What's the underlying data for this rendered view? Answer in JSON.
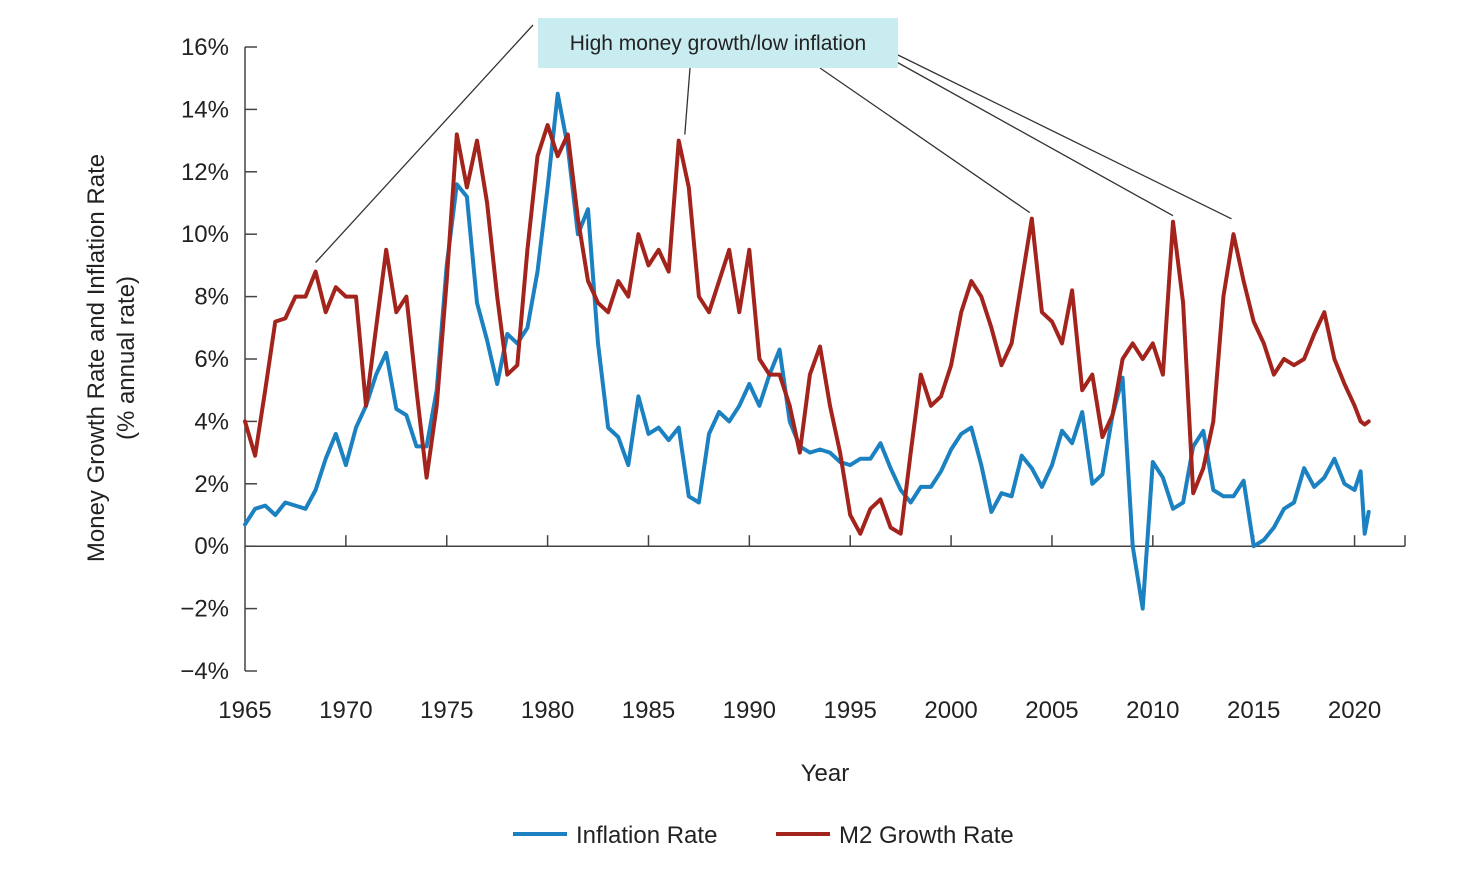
{
  "chart_data": {
    "type": "line",
    "title": "",
    "xlabel": "Year",
    "ylabel_lines": [
      "Money Growth Rate and Inflation Rate",
      "(% annual rate)"
    ],
    "xlim": [
      1965,
      2022.5
    ],
    "ylim": [
      -4,
      16
    ],
    "x_ticks": [
      1965,
      1970,
      1975,
      1980,
      1985,
      1990,
      1995,
      2000,
      2005,
      2010,
      2015,
      2020
    ],
    "x_tick_labels": [
      "1965",
      "1970",
      "1975",
      "1980",
      "1985",
      "1990",
      "1995",
      "2000",
      "2005",
      "2010",
      "2015",
      "2020"
    ],
    "y_ticks": [
      -4,
      -2,
      0,
      2,
      4,
      6,
      8,
      10,
      12,
      14,
      16
    ],
    "y_tick_labels": [
      "−4%",
      "−2%",
      "0%",
      "2%",
      "4%",
      "6%",
      "8%",
      "10%",
      "12%",
      "14%",
      "16%"
    ],
    "grid": false,
    "legend_position": "bottom-center",
    "annotation": {
      "text": "High money growth/low inflation",
      "background": "#c9ecf0",
      "points_to": [
        [
          1968.5,
          8.9
        ],
        [
          1986.8,
          13.0
        ],
        [
          2003.9,
          10.5
        ],
        [
          2011.0,
          10.4
        ],
        [
          2013.9,
          10.3
        ]
      ]
    },
    "series": [
      {
        "name": "Inflation Rate",
        "color": "#1b81c0",
        "x": [
          1965.0,
          1965.5,
          1966.0,
          1966.5,
          1967.0,
          1967.5,
          1968.0,
          1968.5,
          1969.0,
          1969.5,
          1970.0,
          1970.5,
          1971.0,
          1971.5,
          1972.0,
          1972.5,
          1973.0,
          1973.5,
          1974.0,
          1974.5,
          1975.0,
          1975.5,
          1976.0,
          1976.5,
          1977.0,
          1977.5,
          1978.0,
          1978.5,
          1979.0,
          1979.5,
          1980.0,
          1980.5,
          1981.0,
          1981.5,
          1982.0,
          1982.5,
          1983.0,
          1983.5,
          1984.0,
          1984.5,
          1985.0,
          1985.5,
          1986.0,
          1986.5,
          1987.0,
          1987.5,
          1988.0,
          1988.5,
          1989.0,
          1989.5,
          1990.0,
          1990.5,
          1991.0,
          1991.5,
          1992.0,
          1992.5,
          1993.0,
          1993.5,
          1994.0,
          1994.5,
          1995.0,
          1995.5,
          1996.0,
          1996.5,
          1997.0,
          1997.5,
          1998.0,
          1998.5,
          1999.0,
          1999.5,
          2000.0,
          2000.5,
          2001.0,
          2001.5,
          2002.0,
          2002.5,
          2003.0,
          2003.5,
          2004.0,
          2004.5,
          2005.0,
          2005.5,
          2006.0,
          2006.5,
          2007.0,
          2007.5,
          2008.0,
          2008.5,
          2009.0,
          2009.5,
          2010.0,
          2010.5,
          2011.0,
          2011.5,
          2012.0,
          2012.5,
          2013.0,
          2013.5,
          2014.0,
          2014.5,
          2015.0,
          2015.5,
          2016.0,
          2016.5,
          2017.0,
          2017.5,
          2018.0,
          2018.5,
          2019.0,
          2019.5,
          2020.0,
          2020.3,
          2020.5,
          2020.7
        ],
        "values": [
          0.7,
          1.2,
          1.3,
          1.0,
          1.4,
          1.3,
          1.2,
          1.8,
          2.8,
          3.6,
          2.6,
          3.8,
          4.5,
          5.5,
          6.2,
          4.4,
          4.2,
          3.2,
          3.2,
          5.0,
          9.0,
          11.6,
          11.2,
          7.8,
          6.6,
          5.2,
          6.8,
          6.5,
          7.0,
          8.8,
          11.5,
          14.5,
          12.8,
          10.0,
          10.8,
          6.5,
          3.8,
          3.5,
          2.6,
          4.8,
          3.6,
          3.8,
          3.4,
          3.8,
          1.6,
          1.4,
          3.6,
          4.3,
          4.0,
          4.5,
          5.2,
          4.5,
          5.5,
          6.3,
          4.0,
          3.2,
          3.0,
          3.1,
          3.0,
          2.7,
          2.6,
          2.8,
          2.8,
          3.3,
          2.5,
          1.8,
          1.4,
          1.9,
          1.9,
          2.4,
          3.1,
          3.6,
          3.8,
          2.6,
          1.1,
          1.7,
          1.6,
          2.9,
          2.5,
          1.9,
          2.6,
          3.7,
          3.3,
          4.3,
          2.0,
          2.3,
          4.2,
          5.4,
          0.0,
          -2.0,
          2.7,
          2.2,
          1.2,
          1.4,
          3.2,
          3.7,
          1.8,
          1.6,
          1.6,
          2.1,
          0.0,
          0.2,
          0.6,
          1.2,
          1.4,
          2.5,
          1.9,
          2.2,
          2.8,
          2.0,
          1.8,
          2.4,
          0.4,
          1.1
        ]
      },
      {
        "name": "M2 Growth Rate",
        "color": "#a3241c",
        "x": [
          1965.0,
          1965.5,
          1966.0,
          1966.5,
          1967.0,
          1967.5,
          1968.0,
          1968.5,
          1969.0,
          1969.5,
          1970.0,
          1970.5,
          1971.0,
          1971.5,
          1972.0,
          1972.5,
          1973.0,
          1973.5,
          1974.0,
          1974.5,
          1975.0,
          1975.5,
          1976.0,
          1976.5,
          1977.0,
          1977.5,
          1978.0,
          1978.5,
          1979.0,
          1979.5,
          1980.0,
          1980.5,
          1981.0,
          1981.5,
          1982.0,
          1982.5,
          1983.0,
          1983.5,
          1984.0,
          1984.5,
          1985.0,
          1985.5,
          1986.0,
          1986.5,
          1987.0,
          1987.5,
          1988.0,
          1988.5,
          1989.0,
          1989.5,
          1990.0,
          1990.5,
          1991.0,
          1991.5,
          1992.0,
          1992.5,
          1993.0,
          1993.5,
          1994.0,
          1994.5,
          1995.0,
          1995.5,
          1996.0,
          1996.5,
          1997.0,
          1997.5,
          1998.0,
          1998.5,
          1999.0,
          1999.5,
          2000.0,
          2000.5,
          2001.0,
          2001.5,
          2002.0,
          2002.5,
          2003.0,
          2003.5,
          2004.0,
          2004.5,
          2005.0,
          2005.5,
          2006.0,
          2006.5,
          2007.0,
          2007.5,
          2008.0,
          2008.5,
          2009.0,
          2009.5,
          2010.0,
          2010.5,
          2011.0,
          2011.5,
          2012.0,
          2012.5,
          2013.0,
          2013.5,
          2014.0,
          2014.5,
          2015.0,
          2015.5,
          2016.0,
          2016.5,
          2017.0,
          2017.5,
          2018.0,
          2018.5,
          2019.0,
          2019.5,
          2020.0,
          2020.3,
          2020.5,
          2020.7
        ],
        "values": [
          4.0,
          2.9,
          5.0,
          7.2,
          7.3,
          8.0,
          8.0,
          8.8,
          7.5,
          8.3,
          8.0,
          8.0,
          4.5,
          7.0,
          9.5,
          7.5,
          8.0,
          5.0,
          2.2,
          4.5,
          8.5,
          13.2,
          11.5,
          13.0,
          11.0,
          8.0,
          5.5,
          5.8,
          9.5,
          12.5,
          13.5,
          12.5,
          13.2,
          10.5,
          8.5,
          7.8,
          7.5,
          8.5,
          8.0,
          10.0,
          9.0,
          9.5,
          8.8,
          13.0,
          11.5,
          8.0,
          7.5,
          8.5,
          9.5,
          7.5,
          9.5,
          6.0,
          5.5,
          5.5,
          4.5,
          3.0,
          5.5,
          6.4,
          4.5,
          3.0,
          1.0,
          0.4,
          1.2,
          1.5,
          0.6,
          0.4,
          3.0,
          5.5,
          4.5,
          4.8,
          5.8,
          7.5,
          8.5,
          8.0,
          7.0,
          5.8,
          6.5,
          8.5,
          10.5,
          7.5,
          7.2,
          6.5,
          8.2,
          5.0,
          5.5,
          3.5,
          4.2,
          6.0,
          6.5,
          6.0,
          6.5,
          5.5,
          10.4,
          7.8,
          1.7,
          2.5,
          4.0,
          8.0,
          10.0,
          8.5,
          7.2,
          6.5,
          5.5,
          6.0,
          5.8,
          6.0,
          6.8,
          7.5,
          6.0,
          5.2,
          4.5,
          4.0,
          3.9,
          4.0
        ]
      }
    ]
  },
  "legend": {
    "items": [
      {
        "label": "Inflation Rate",
        "color": "#1b81c0"
      },
      {
        "label": "M2 Growth Rate",
        "color": "#a3241c"
      }
    ]
  }
}
